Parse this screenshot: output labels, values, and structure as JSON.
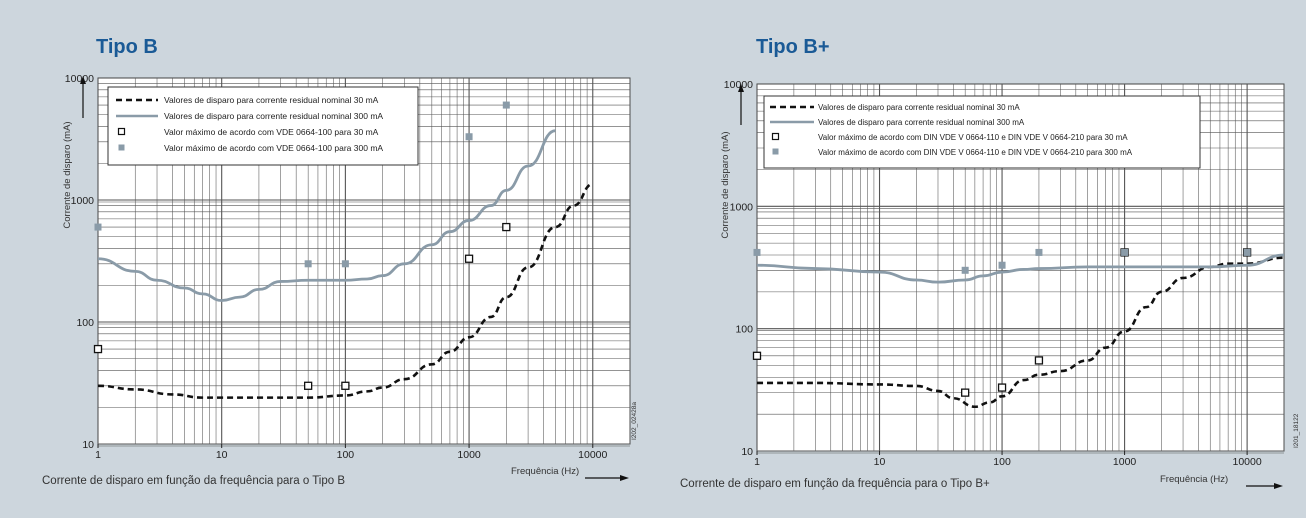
{
  "colors": {
    "background": "#cdd6dd",
    "title": "#1a5a96",
    "plot_bg": "#ffffff",
    "grid": "#555555",
    "series_30": "#111111",
    "series_300": "#8a9ba8",
    "marker_300": "#8a9ba8"
  },
  "chart_data": [
    {
      "type": "line",
      "title": "Tipo B",
      "caption": "Corrente de disparo em função da frequência para o Tipo B",
      "xlabel": "Frequência (Hz)",
      "ylabel": "Corrente de disparo (mA)",
      "xscale": "log",
      "yscale": "log",
      "xlim": [
        1,
        20000
      ],
      "ylim": [
        10,
        10000
      ],
      "xticks": [
        "1",
        "10",
        "100",
        "1000",
        "10000"
      ],
      "yticks": [
        "10",
        "100",
        "1000",
        "10000"
      ],
      "grid": true,
      "legend_position": "top-left",
      "side_code": "I202_02428a",
      "legend": [
        "Valores de disparo para corrente residual nominal 30 mA",
        "Valores de disparo para corrente residual nominal 300 mA",
        "Valor máximo de acordo com VDE 0664-100 para 30 mA",
        "Valor máximo de acordo com VDE 0664-100 para 300 mA"
      ],
      "series": [
        {
          "style": "dashed-black",
          "x": [
            1,
            2,
            4,
            7,
            10,
            20,
            50,
            100,
            150,
            200,
            300,
            500,
            700,
            1000,
            1500,
            2000,
            3000,
            5000,
            7000,
            10000
          ],
          "y": [
            30,
            28,
            25.5,
            24,
            24,
            24,
            24,
            25,
            27,
            29,
            34,
            45,
            57,
            75,
            110,
            160,
            280,
            600,
            900,
            1350
          ]
        },
        {
          "style": "solid-grey",
          "x": [
            1,
            2,
            3,
            5,
            7,
            10,
            14,
            20,
            30,
            50,
            100,
            150,
            200,
            300,
            500,
            700,
            1000,
            1500,
            2000,
            3000,
            5000
          ],
          "y": [
            330,
            260,
            220,
            190,
            170,
            150,
            160,
            185,
            215,
            220,
            220,
            225,
            240,
            300,
            430,
            550,
            680,
            900,
            1200,
            1900,
            3700
          ]
        },
        {
          "style": "marker-open-square",
          "x": [
            1,
            50,
            100,
            1000,
            2000
          ],
          "y": [
            60,
            30,
            30,
            330,
            600
          ]
        },
        {
          "style": "marker-filled-grey",
          "x": [
            1,
            50,
            100,
            1000,
            2000
          ],
          "y": [
            600,
            300,
            300,
            3300,
            6000
          ]
        }
      ]
    },
    {
      "type": "line",
      "title": "Tipo B+",
      "caption": "Corrente de disparo em função da frequência para o Tipo B+",
      "xlabel": "Frequência (Hz)",
      "ylabel": "Corrente de disparo (mA)",
      "xscale": "log",
      "yscale": "log",
      "xlim": [
        1,
        20000
      ],
      "ylim": [
        10,
        10000
      ],
      "xticks": [
        "1",
        "10",
        "100",
        "1000",
        "10000"
      ],
      "yticks": [
        "10",
        "100",
        "1000",
        "10000"
      ],
      "grid": true,
      "legend_position": "top-left",
      "side_code": "I201_18122",
      "legend": [
        "Valores de disparo para corrente residual nominal 30 mA",
        "Valores de disparo para corrente residual nominal 300 mA",
        "Valor máximo de acordo com DIN VDE V 0664-110 e DIN VDE V 0664-210 para 30 mA",
        "Valor máximo de acordo com DIN VDE V 0664-110 e DIN VDE V 0664-210 para 300 mA"
      ],
      "series": [
        {
          "style": "dashed-black",
          "x": [
            1,
            3,
            10,
            20,
            30,
            40,
            60,
            80,
            100,
            150,
            200,
            300,
            500,
            700,
            1000,
            1500,
            2000,
            3000,
            5000,
            7000,
            10000,
            20000
          ],
          "y": [
            36,
            36,
            35,
            34,
            31,
            27,
            23,
            25,
            28,
            38,
            42,
            45,
            55,
            70,
            95,
            150,
            200,
            260,
            320,
            340,
            340,
            380
          ]
        },
        {
          "style": "solid-grey",
          "x": [
            1,
            3,
            10,
            20,
            30,
            50,
            70,
            100,
            150,
            200,
            500,
            1000,
            2000,
            5000,
            10000,
            20000
          ],
          "y": [
            330,
            310,
            290,
            250,
            240,
            250,
            270,
            290,
            305,
            310,
            320,
            320,
            320,
            320,
            330,
            400
          ]
        },
        {
          "style": "marker-open-square",
          "x": [
            1,
            50,
            100,
            200,
            1000,
            10000
          ],
          "y": [
            60,
            30,
            33,
            55,
            420,
            420
          ]
        },
        {
          "style": "marker-filled-grey",
          "x": [
            1,
            50,
            100,
            200,
            1000,
            10000
          ],
          "y": [
            420,
            300,
            330,
            420,
            420,
            420
          ]
        }
      ]
    }
  ]
}
